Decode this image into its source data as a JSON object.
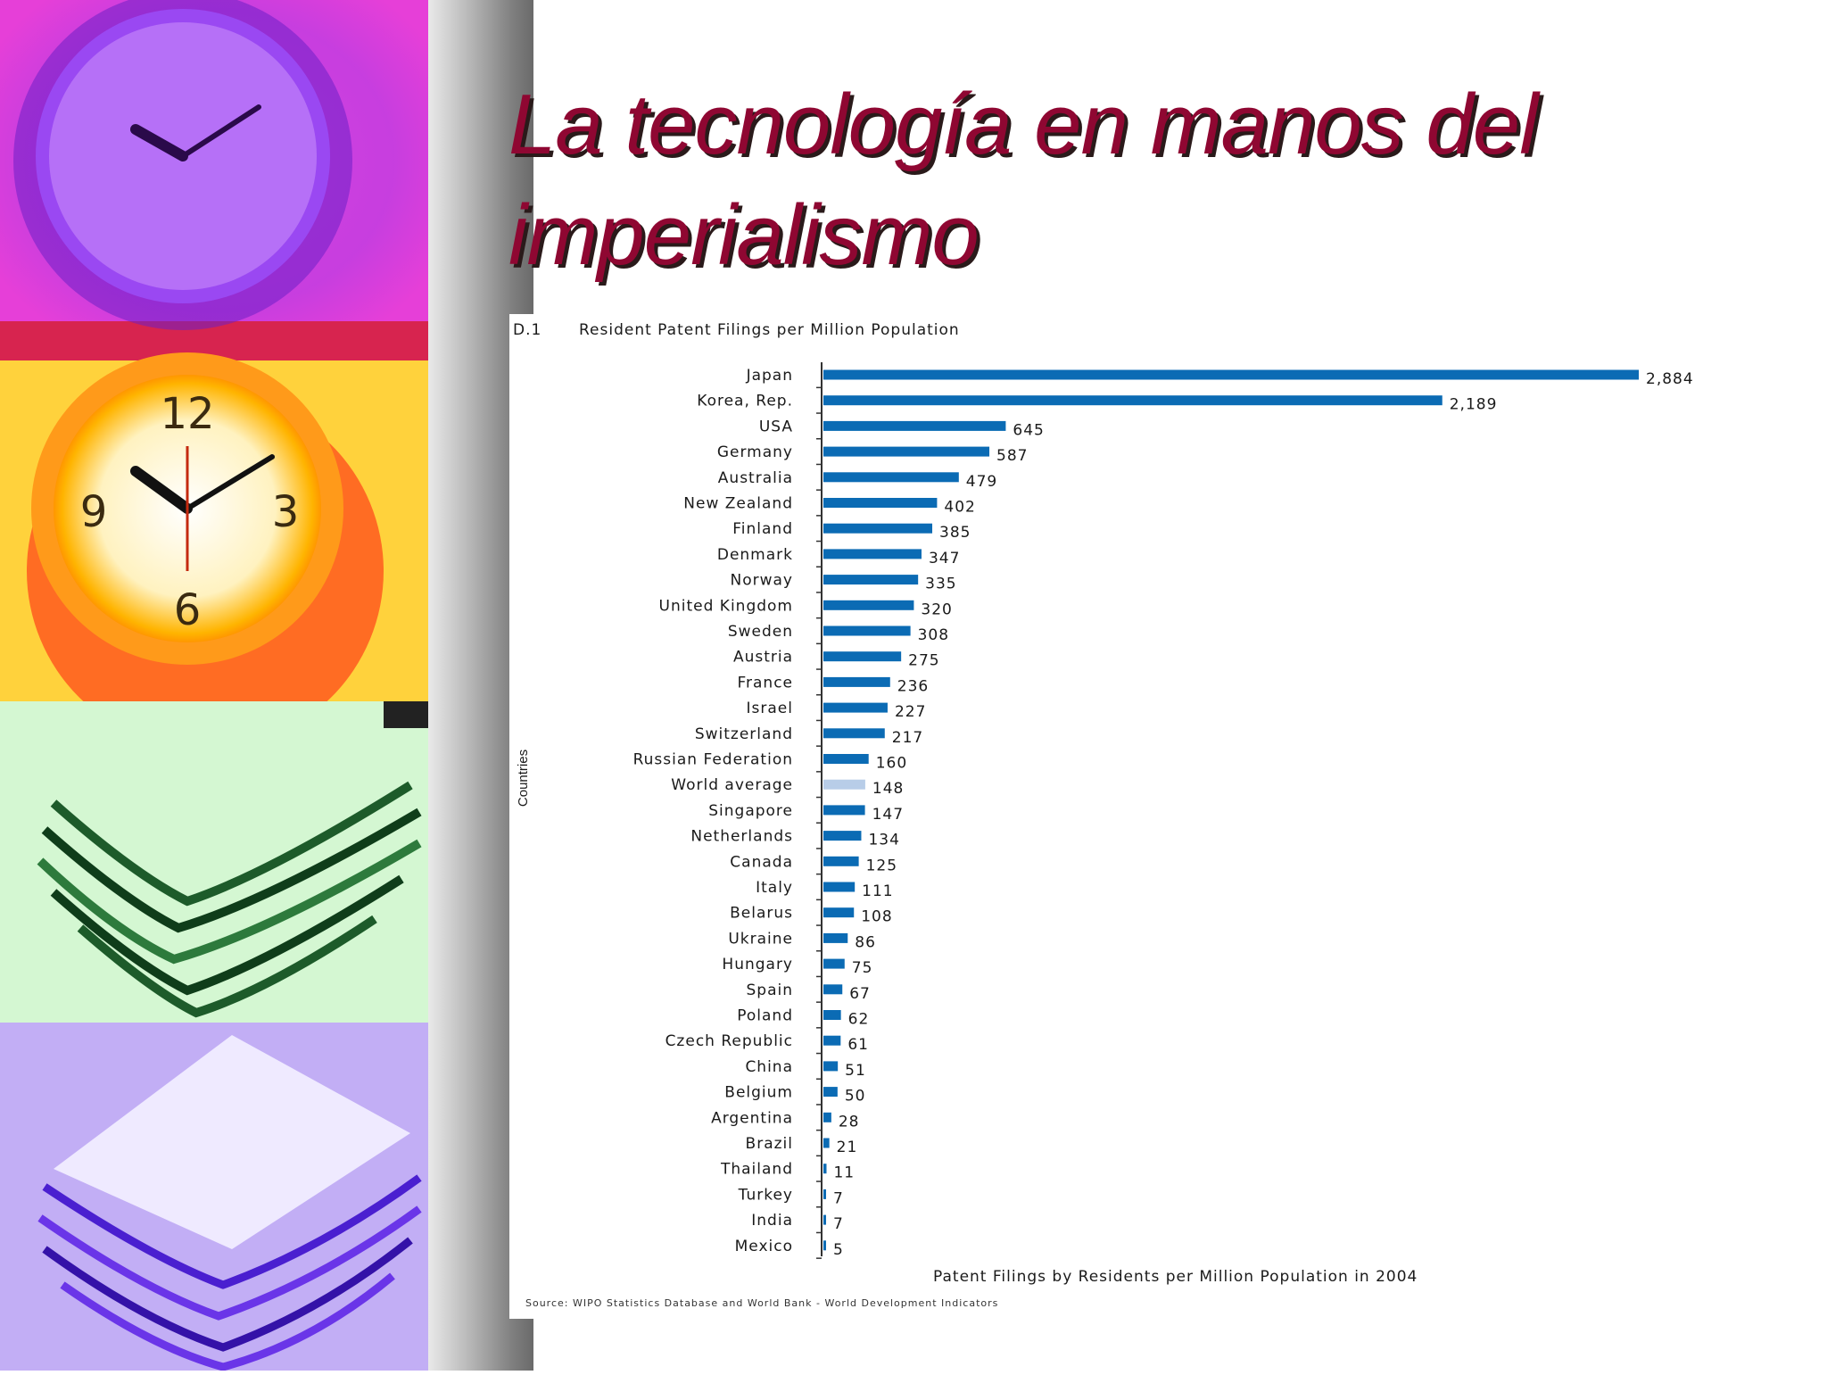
{
  "slide": {
    "title": "La tecnología en manos del imperialismo"
  },
  "decor": {
    "tiles": [
      {
        "name": "magenta-clock-photo",
        "bg": "#e23ad8"
      },
      {
        "name": "yellow-clock-photo",
        "bg": "#ffd33b"
      },
      {
        "name": "green-papers-photo",
        "bg": "#c8f7c8"
      },
      {
        "name": "violet-papers-photo",
        "bg": "#b9a2f2"
      }
    ]
  },
  "chart_data": {
    "type": "bar",
    "orientation": "horizontal",
    "figure_id": "D.1",
    "title": "Resident Patent Filings per Million Population",
    "xlabel": "Patent Filings by Residents per Million Population in 2004",
    "ylabel": "Countries",
    "source": "Source: WIPO Statistics Database and World Bank - World Development Indicators",
    "categories": [
      "Japan",
      "Korea, Rep.",
      "USA",
      "Germany",
      "Australia",
      "New Zealand",
      "Finland",
      "Denmark",
      "Norway",
      "United Kingdom",
      "Sweden",
      "Austria",
      "France",
      "Israel",
      "Switzerland",
      "Russian Federation",
      "World average",
      "Singapore",
      "Netherlands",
      "Canada",
      "Italy",
      "Belarus",
      "Ukraine",
      "Hungary",
      "Spain",
      "Poland",
      "Czech Republic",
      "China",
      "Belgium",
      "Argentina",
      "Brazil",
      "Thailand",
      "Turkey",
      "India",
      "Mexico"
    ],
    "values": [
      2884,
      2189,
      645,
      587,
      479,
      402,
      385,
      347,
      335,
      320,
      308,
      275,
      236,
      227,
      217,
      160,
      148,
      147,
      134,
      125,
      111,
      108,
      86,
      75,
      67,
      62,
      61,
      51,
      50,
      28,
      21,
      11,
      7,
      7,
      5
    ],
    "value_labels": [
      "2,884",
      "2,189",
      "645",
      "587",
      "479",
      "402",
      "385",
      "347",
      "335",
      "320",
      "308",
      "275",
      "236",
      "227",
      "217",
      "160",
      "148",
      "147",
      "134",
      "125",
      "111",
      "108",
      "86",
      "75",
      "67",
      "62",
      "61",
      "51",
      "50",
      "28",
      "21",
      "11",
      "7",
      "7",
      "5"
    ],
    "highlight_category": "World average",
    "colors": {
      "bar": "#0b6bb4",
      "highlight": "#b8cde8"
    },
    "xlim": [
      0,
      2884
    ],
    "grid": false,
    "legend": "none"
  }
}
